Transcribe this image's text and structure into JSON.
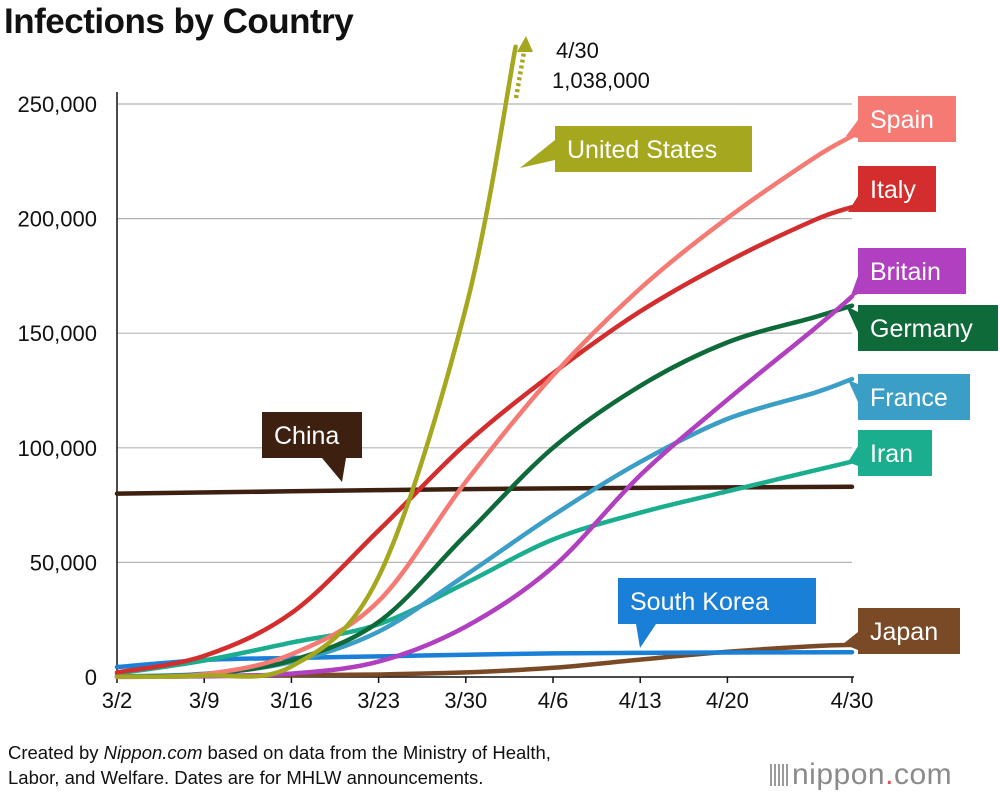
{
  "title": "Infections by Country",
  "footer": {
    "prefix": "Created by ",
    "source_italic": "Nippon.com",
    "line1_rest": " based on data from the Ministry of Health,",
    "line2": "Labor, and Welfare. Dates are for MHLW announcements."
  },
  "brand": {
    "name": "nippon",
    "dot": ".",
    "tld": "com"
  },
  "us_callout": {
    "date": "4/30",
    "value": "1,038,000"
  },
  "chart_data": {
    "type": "line",
    "title": "Infections by Country",
    "x_tick_labels": [
      "3/2",
      "3/9",
      "3/16",
      "3/23",
      "3/30",
      "4/6",
      "4/13",
      "4/20",
      "4/30"
    ],
    "x_tick_days": [
      0,
      7,
      14,
      21,
      28,
      35,
      42,
      49,
      59
    ],
    "y_tick_labels": [
      "0",
      "50,000",
      "100,000",
      "150,000",
      "200,000",
      "250,000"
    ],
    "y_tick_values": [
      0,
      50000,
      100000,
      150000,
      200000,
      250000
    ],
    "ylim": [
      0,
      250000
    ],
    "grid": true,
    "series": [
      {
        "name": "China",
        "color": "#3e2010",
        "x": [
          "3/2",
          "3/16",
          "3/30",
          "4/13",
          "4/30"
        ],
        "y": [
          80000,
          81000,
          82000,
          82500,
          83000
        ]
      },
      {
        "name": "Japan",
        "color": "#7a4a26",
        "x": [
          "3/2",
          "3/9",
          "3/16",
          "3/23",
          "3/30",
          "4/6",
          "4/13",
          "4/20",
          "4/27",
          "4/30"
        ],
        "y": [
          300,
          500,
          800,
          1100,
          2000,
          4000,
          7600,
          11000,
          13500,
          14000
        ]
      },
      {
        "name": "South Korea",
        "color": "#1a7fd6",
        "x": [
          "3/2",
          "3/9",
          "3/16",
          "3/23",
          "3/30",
          "4/6",
          "4/13",
          "4/20",
          "4/30"
        ],
        "y": [
          4300,
          7400,
          8300,
          9000,
          9700,
          10300,
          10500,
          10700,
          10800
        ]
      },
      {
        "name": "Iran",
        "color": "#1aae8e",
        "x": [
          "3/2",
          "3/9",
          "3/16",
          "3/23",
          "3/30",
          "4/6",
          "4/13",
          "4/20",
          "4/30"
        ],
        "y": [
          1500,
          7200,
          15000,
          23000,
          41000,
          60000,
          71700,
          81000,
          94000
        ]
      },
      {
        "name": "France",
        "color": "#3b9ec6",
        "x": [
          "3/2",
          "3/9",
          "3/16",
          "3/23",
          "3/30",
          "4/6",
          "4/13",
          "4/20",
          "4/27",
          "4/30"
        ],
        "y": [
          200,
          1400,
          6600,
          19800,
          44500,
          70500,
          93800,
          112600,
          124000,
          130000
        ]
      },
      {
        "name": "Germany",
        "color": "#0f6a3a",
        "x": [
          "3/2",
          "3/9",
          "3/16",
          "3/23",
          "3/30",
          "4/6",
          "4/13",
          "4/20",
          "4/27",
          "4/30"
        ],
        "y": [
          150,
          1200,
          7200,
          24000,
          62000,
          100000,
          127000,
          146000,
          157000,
          162000
        ]
      },
      {
        "name": "Britain",
        "color": "#b040c0",
        "x": [
          "3/2",
          "3/9",
          "3/16",
          "3/23",
          "3/30",
          "4/6",
          "4/13",
          "4/20",
          "4/27",
          "4/30"
        ],
        "y": [
          40,
          320,
          1500,
          6700,
          22000,
          48000,
          88000,
          121000,
          152000,
          166000
        ]
      },
      {
        "name": "Italy",
        "color": "#d42d2d",
        "x": [
          "3/2",
          "3/9",
          "3/16",
          "3/23",
          "3/30",
          "4/6",
          "4/13",
          "4/20",
          "4/27",
          "4/30"
        ],
        "y": [
          2000,
          9200,
          27900,
          63900,
          101700,
          132500,
          159500,
          181200,
          199400,
          205000
        ]
      },
      {
        "name": "Spain",
        "color": "#f57a74",
        "x": [
          "3/2",
          "3/9",
          "3/16",
          "3/23",
          "3/30",
          "4/6",
          "4/13",
          "4/20",
          "4/27",
          "4/30"
        ],
        "y": [
          120,
          1200,
          9900,
          33100,
          85200,
          131600,
          169500,
          200200,
          226600,
          236000
        ]
      },
      {
        "name": "United States",
        "color": "#a5a81f",
        "x": [
          "3/2",
          "3/9",
          "3/16",
          "3/23",
          "3/30",
          "4/3"
        ],
        "y": [
          100,
          600,
          4600,
          43700,
          161000,
          275000
        ]
      }
    ]
  }
}
